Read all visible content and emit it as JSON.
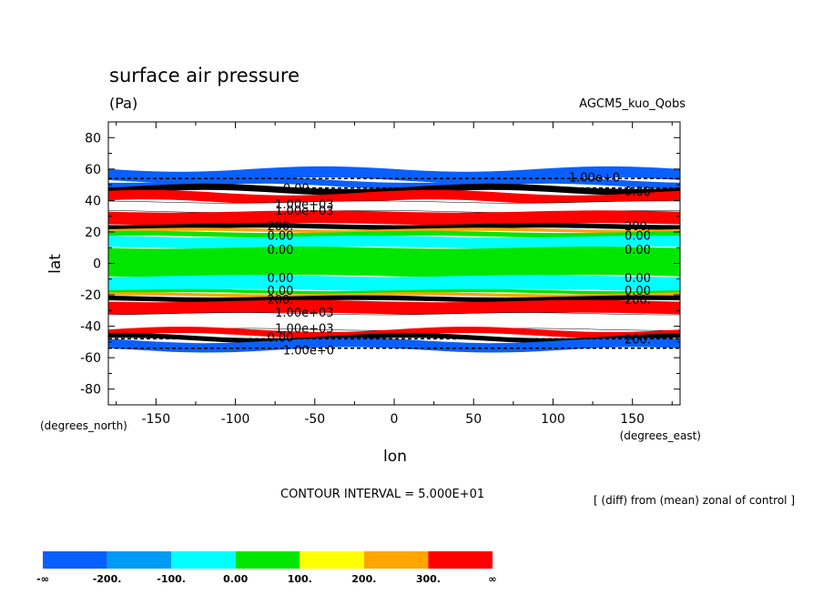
{
  "chart_data": {
    "type": "contour",
    "title": "surface air pressure",
    "units": "(Pa)",
    "run_label": "AGCM5_kuo_Qobs",
    "xlabel": "lon",
    "ylabel": "lat",
    "x_units_label": "(degrees_east)",
    "y_units_label": "(degrees_north)",
    "xlim": [
      -180,
      180
    ],
    "ylim": [
      -90,
      90
    ],
    "x_ticks": [
      -150,
      -100,
      -50,
      0,
      50,
      100,
      150
    ],
    "y_ticks": [
      80,
      60,
      40,
      20,
      0,
      -20,
      -40,
      -60,
      -80
    ],
    "contour_interval_text": "CONTOUR INTERVAL = 5.000E+01",
    "subtitle": "[ (diff) from (mean) zonal of control ]",
    "colors": {
      "lt_-200": "#0a5fff",
      "-200_-100": "#009bf5",
      "-100_0": "#00ffff",
      "0_100": "#00e600",
      "100_200": "#ffff00",
      "200_300": "#ffa500",
      "gt_300": "#ff0000"
    },
    "colorbar": {
      "colors": [
        "#0a5fff",
        "#009bf5",
        "#00ffff",
        "#00e600",
        "#ffff00",
        "#ffa500",
        "#ff0000"
      ],
      "labels": [
        "-∞",
        "-200.",
        "-100.",
        "0.00",
        "100.",
        "200.",
        "300.",
        "∞"
      ]
    },
    "bands": [
      {
        "lat_from": 60,
        "lat_to": 53,
        "color": "#0a5fff"
      },
      {
        "lat_from": 53,
        "lat_to": 49,
        "color": "#0a5fff"
      },
      {
        "lat_from": 49,
        "lat_to": 45,
        "color": "#000000"
      },
      {
        "lat_from": 45,
        "lat_to": 39,
        "color": "#ff0000"
      },
      {
        "lat_from": 39,
        "lat_to": 33,
        "color": "#ffffff"
      },
      {
        "lat_from": 33,
        "lat_to": 25,
        "color": "#ff0000"
      },
      {
        "lat_from": 25,
        "lat_to": 22,
        "color": "#000000"
      },
      {
        "lat_from": 22,
        "lat_to": 20,
        "color": "#ffa500"
      },
      {
        "lat_from": 20,
        "lat_to": 17,
        "color": "#00e600"
      },
      {
        "lat_from": 17,
        "lat_to": 10,
        "color": "#00ffff"
      },
      {
        "lat_from": 10,
        "lat_to": -8,
        "color": "#00e600"
      },
      {
        "lat_from": -8,
        "lat_to": -17,
        "color": "#00ffff"
      },
      {
        "lat_from": -17,
        "lat_to": -19,
        "color": "#00e600"
      },
      {
        "lat_from": -19,
        "lat_to": -21,
        "color": "#ffa500"
      },
      {
        "lat_from": -21,
        "lat_to": -24,
        "color": "#000000"
      },
      {
        "lat_from": -24,
        "lat_to": -32,
        "color": "#ff0000"
      },
      {
        "lat_from": -32,
        "lat_to": -42,
        "color": "#ffffff"
      },
      {
        "lat_from": -42,
        "lat_to": -46,
        "color": "#ff0000"
      },
      {
        "lat_from": -46,
        "lat_to": -49,
        "color": "#000000"
      },
      {
        "lat_from": -49,
        "lat_to": -55,
        "color": "#0a5fff"
      }
    ],
    "contour_labels": [
      {
        "text": "1.00e+0",
        "lon": 110,
        "lat": 55
      },
      {
        "text": "0.00",
        "lon": -70,
        "lat": 48
      },
      {
        "text": "1.00e+03",
        "lon": -75,
        "lat": 38
      },
      {
        "text": "1.00e+03",
        "lon": -75,
        "lat": 34
      },
      {
        "text": "0.00",
        "lon": 145,
        "lat": 46
      },
      {
        "text": "200.",
        "lon": -80,
        "lat": 24
      },
      {
        "text": "200.",
        "lon": 145,
        "lat": 24
      },
      {
        "text": "0.00",
        "lon": -80,
        "lat": 18
      },
      {
        "text": "0.00",
        "lon": 145,
        "lat": 18
      },
      {
        "text": "0.00",
        "lon": -80,
        "lat": 9
      },
      {
        "text": "0.00",
        "lon": 145,
        "lat": 9
      },
      {
        "text": "0.00",
        "lon": -80,
        "lat": -9
      },
      {
        "text": "0.00",
        "lon": 145,
        "lat": -9
      },
      {
        "text": "0.00",
        "lon": -80,
        "lat": -17
      },
      {
        "text": "0.00",
        "lon": 145,
        "lat": -17
      },
      {
        "text": "200.",
        "lon": -80,
        "lat": -23
      },
      {
        "text": "200.",
        "lon": 145,
        "lat": -23
      },
      {
        "text": "1.00e+03",
        "lon": -75,
        "lat": -31
      },
      {
        "text": "1.00e+03",
        "lon": -75,
        "lat": -41
      },
      {
        "text": "0.00",
        "lon": -80,
        "lat": -47
      },
      {
        "text": "200.",
        "lon": 145,
        "lat": -48
      },
      {
        "text": "1.00e+0",
        "lon": -70,
        "lat": -55
      }
    ]
  }
}
